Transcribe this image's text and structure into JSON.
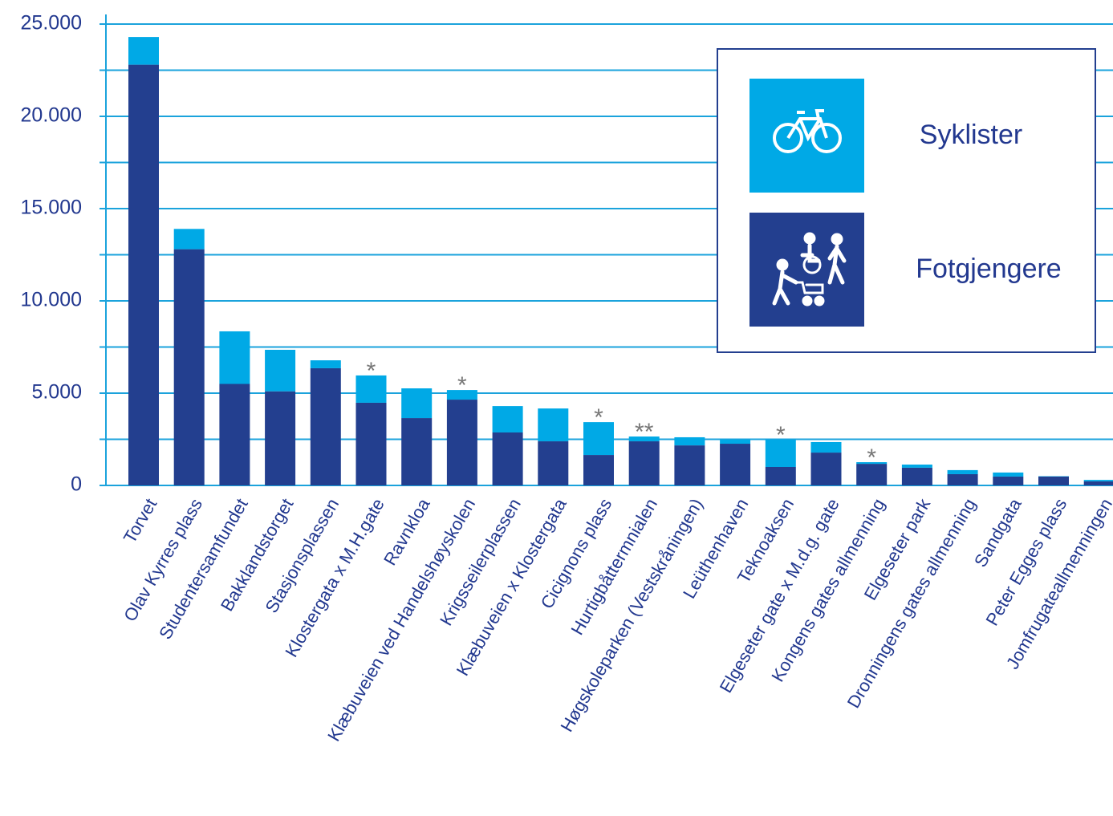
{
  "chart_data": {
    "type": "stacked_bar",
    "categories": [
      "Torvet",
      "Olav Kyrres plass",
      "Studentersamfundet",
      "Bakklandstorget",
      "Stasjonsplassen",
      "Klostergata x M.H.gate",
      "Ravnkloa",
      "Klæbuveien ved Handelshøyskolen",
      "Krigsseilerplassen",
      "Klæbuveien x Klostergata",
      "Cicignons plass",
      "Hurtigbåttermnialen",
      "Høgskoleparken (Vestskråningen)",
      "Leüthenhaven",
      "Teknoaksen",
      "Elgeseter gate x M.d.g. gate",
      "Kongens gates allmenning",
      "Elgeseter park",
      "Dronningens gates allmenning",
      "Sandgata",
      "Peter Egges plass",
      "Jomfrugateallmenningen"
    ],
    "series": [
      {
        "name": "Fotgjengere",
        "color": "#233f8f",
        "values": [
          22800,
          12800,
          5500,
          5100,
          6350,
          4480,
          3650,
          4650,
          2870,
          2390,
          1650,
          2390,
          2170,
          2260,
          1000,
          1780,
          1170,
          960,
          610,
          480,
          480,
          220
        ]
      },
      {
        "name": "Syklister",
        "color": "#00a9e6",
        "values": [
          1500,
          1100,
          2850,
          2250,
          430,
          1480,
          1610,
          520,
          1430,
          1780,
          1780,
          260,
          440,
          220,
          1480,
          570,
          90,
          170,
          220,
          220,
          20,
          80
        ]
      }
    ],
    "annotations": [
      null,
      null,
      null,
      null,
      null,
      "*",
      null,
      "*",
      null,
      null,
      "*",
      "**",
      null,
      null,
      "*",
      null,
      "*",
      null,
      null,
      null,
      null,
      null
    ],
    "ylim": [
      0,
      25000
    ],
    "yticks": [
      0,
      {
        "value": 5000,
        "label": "5.000"
      },
      {
        "value": 10000,
        "label": "10.000"
      },
      {
        "value": 15000,
        "label": "15.000"
      },
      {
        "value": 20000,
        "label": "20.000"
      },
      {
        "value": 25000,
        "label": "25.000"
      }
    ],
    "minor_yticks": [
      2500,
      7500,
      12500,
      17500,
      22500
    ],
    "grid": true
  }
}
